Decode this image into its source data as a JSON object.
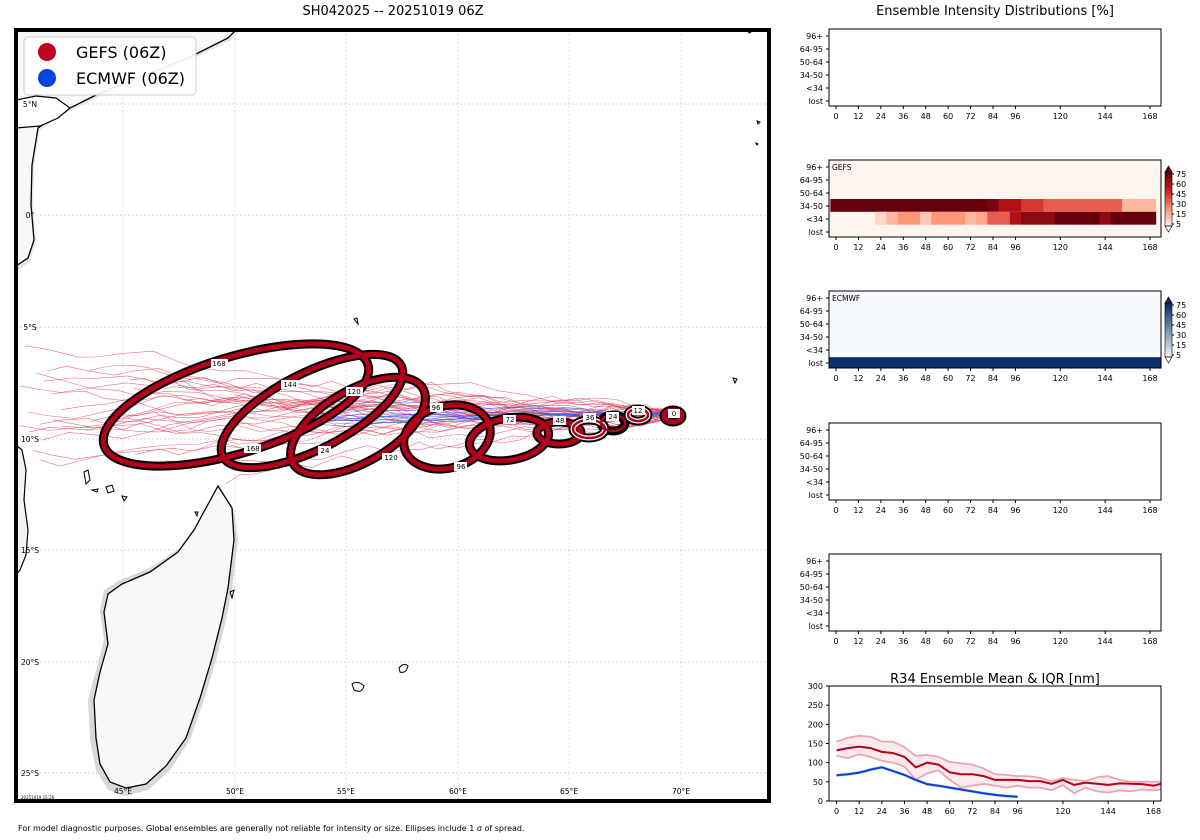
{
  "map": {
    "title": "SH042025 -- 20251019 06Z",
    "legend": [
      {
        "label": "GEFS (06Z)",
        "color": "#c0001f"
      },
      {
        "label": "ECMWF (06Z)",
        "color": "#0045e0"
      }
    ],
    "lon_labels": [
      "45°E",
      "50°E",
      "55°E",
      "60°E",
      "65°E",
      "70°E"
    ],
    "lat_labels": [
      "5°N",
      "0°",
      "5°S",
      "10°S",
      "15°S",
      "20°S",
      "25°S"
    ],
    "timestamp": "20251019 15:26",
    "footnote": "For model diagnostic purposes. Global ensembles are generally not reliable for intensity or size. Ellipses include 1 σ of spread.",
    "ellipse_labels": [
      "0",
      "12",
      "24",
      "36",
      "48",
      "72",
      "96",
      "96",
      "120",
      "120",
      "144",
      "168",
      "168",
      "24"
    ]
  },
  "intensity": {
    "title": "Ensemble Intensity Distributions [%]",
    "row_labels": [
      "96+",
      "64-95",
      "50-64",
      "34-50",
      "<34",
      "lost"
    ],
    "x_ticks": [
      "0",
      "12",
      "24",
      "36",
      "48",
      "60",
      "72",
      "84",
      "96",
      "120",
      "144",
      "168"
    ],
    "panels": [
      {
        "name": "",
        "colorbar": null
      },
      {
        "name": "GEFS",
        "colorbar": "reds"
      },
      {
        "name": "ECMWF",
        "colorbar": "blues"
      },
      {
        "name": "",
        "colorbar": null
      },
      {
        "name": "",
        "colorbar": null
      }
    ],
    "colorbar_ticks": [
      "75",
      "60",
      "45",
      "30",
      "15",
      "5"
    ],
    "heatmaps": {
      "GEFS": {
        "hours": [
          0,
          6,
          12,
          18,
          24,
          30,
          36,
          42,
          48,
          54,
          60,
          66,
          72,
          78,
          84,
          90,
          96,
          102,
          108,
          114,
          120,
          126,
          132,
          138,
          144,
          150,
          156,
          162,
          168
        ],
        "34-50": [
          100,
          100,
          100,
          100,
          100,
          100,
          100,
          100,
          100,
          100,
          100,
          100,
          100,
          100,
          85,
          70,
          70,
          55,
          55,
          45,
          45,
          45,
          45,
          45,
          45,
          45,
          20,
          20,
          20
        ],
        "<34": [
          0,
          0,
          0,
          0,
          10,
          20,
          30,
          30,
          15,
          30,
          30,
          30,
          20,
          25,
          45,
          45,
          70,
          80,
          80,
          80,
          90,
          90,
          90,
          90,
          80,
          95,
          95,
          95,
          95
        ],
        "lost": [
          0,
          0,
          0,
          0,
          0,
          0,
          0,
          0,
          0,
          0,
          0,
          0,
          0,
          0,
          0,
          0,
          0,
          0,
          0,
          0,
          0,
          0,
          0,
          0,
          0,
          0,
          0,
          0,
          0
        ]
      },
      "ECMWF": {
        "lost_all": 100
      }
    }
  },
  "chart_data": {
    "type": "line",
    "title": "R34 Ensemble Mean & IQR [nm]",
    "xlabel": "",
    "ylabel": "",
    "ylim": [
      0,
      300
    ],
    "xlim": [
      -4,
      172
    ],
    "y_ticks": [
      0,
      50,
      100,
      150,
      200,
      250,
      300
    ],
    "x_ticks": [
      0,
      12,
      24,
      36,
      48,
      60,
      72,
      84,
      96,
      120,
      144,
      168
    ],
    "series": [
      {
        "name": "GEFS mean",
        "color": "#b5001c",
        "x": [
          0,
          6,
          12,
          18,
          24,
          30,
          36,
          42,
          48,
          54,
          60,
          66,
          72,
          78,
          84,
          90,
          96,
          102,
          108,
          114,
          120,
          126,
          132,
          138,
          144,
          150,
          156,
          162,
          168,
          172
        ],
        "y": [
          132,
          138,
          142,
          138,
          128,
          125,
          115,
          88,
          100,
          95,
          75,
          70,
          70,
          65,
          55,
          55,
          55,
          52,
          52,
          45,
          55,
          42,
          48,
          45,
          42,
          46,
          45,
          44,
          40,
          45
        ]
      },
      {
        "name": "GEFS IQR upper",
        "color": "#e8a6b2",
        "x": [
          0,
          6,
          12,
          18,
          24,
          30,
          36,
          42,
          48,
          54,
          60,
          66,
          72,
          78,
          84,
          90,
          96,
          102,
          108,
          114,
          120,
          126,
          132,
          138,
          144,
          150,
          156,
          162,
          168,
          172
        ],
        "y": [
          155,
          165,
          170,
          168,
          155,
          155,
          140,
          118,
          120,
          115,
          102,
          98,
          95,
          85,
          70,
          68,
          65,
          65,
          60,
          52,
          60,
          55,
          52,
          62,
          65,
          55,
          50,
          50,
          50,
          50
        ]
      },
      {
        "name": "GEFS IQR lower",
        "color": "#e8a6b2",
        "x": [
          0,
          6,
          12,
          18,
          24,
          30,
          36,
          42,
          48,
          54,
          60,
          66,
          72,
          78,
          84,
          90,
          96,
          102,
          108,
          114,
          120,
          126,
          132,
          138,
          144,
          150,
          156,
          162,
          168,
          172
        ],
        "y": [
          118,
          112,
          122,
          115,
          105,
          100,
          90,
          55,
          72,
          80,
          55,
          35,
          40,
          45,
          40,
          35,
          40,
          35,
          35,
          28,
          42,
          20,
          35,
          25,
          22,
          28,
          25,
          30,
          28,
          30
        ]
      },
      {
        "name": "ECMWF mean",
        "color": "#0a3fd6",
        "x": [
          0,
          6,
          12,
          18,
          24,
          30,
          36,
          42,
          48,
          54,
          60,
          66,
          72,
          78,
          84,
          90,
          96
        ],
        "y": [
          67,
          70,
          74,
          82,
          88,
          78,
          68,
          55,
          44,
          40,
          35,
          30,
          25,
          20,
          16,
          13,
          11
        ]
      }
    ]
  }
}
